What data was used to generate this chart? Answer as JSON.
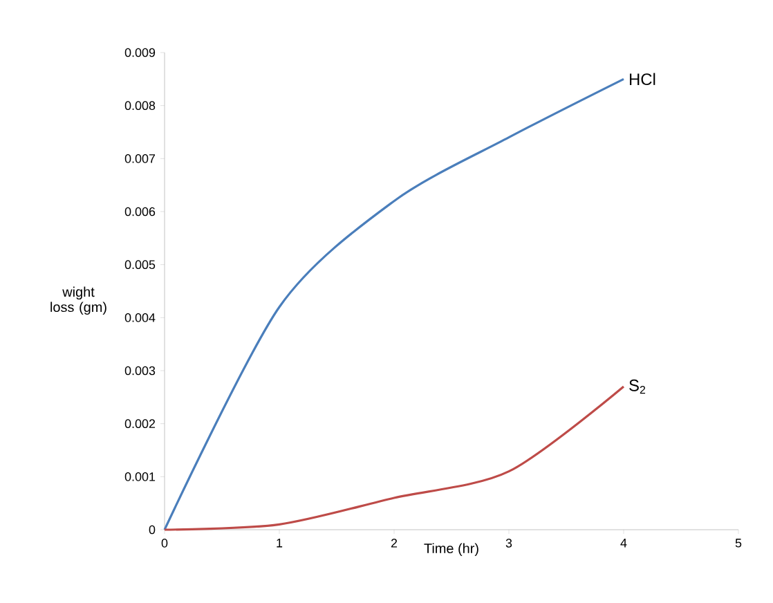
{
  "chart_data": {
    "type": "line",
    "xlabel": "Time (hr)",
    "ylabel": "wight loss (gm)",
    "x": [
      0,
      1,
      2,
      3,
      4
    ],
    "series": [
      {
        "name": "HCl",
        "color": "#4a7ebb",
        "values": [
          0,
          0.0042,
          0.0062,
          0.0074,
          0.0085
        ]
      },
      {
        "name": "S$_{2}$",
        "color": "#be4b48",
        "values": [
          0,
          0.0001,
          0.0006,
          0.0011,
          0.0027
        ]
      }
    ],
    "xlim": [
      0,
      5
    ],
    "xticks": [
      0,
      1,
      2,
      3,
      4,
      5
    ],
    "ylim": [
      0,
      0.009
    ],
    "yticks": [
      0,
      0.001,
      0.002,
      0.003,
      0.004,
      0.005,
      0.006,
      0.007,
      0.008,
      0.009
    ],
    "grid": false,
    "legend": false,
    "marker": "none",
    "line_style": "solid"
  }
}
